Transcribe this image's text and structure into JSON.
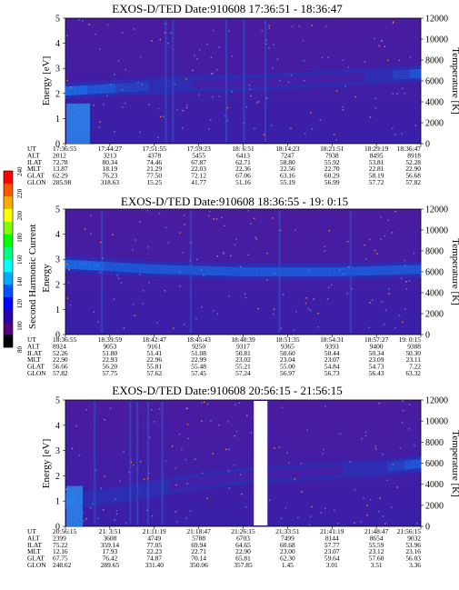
{
  "panels": [
    {
      "title": "EXOS-D/TED   Date:910608  17:36:51 - 18:36:47",
      "ylabel": "Energy [eV]",
      "y2label": "Temperature [K]",
      "yticks": [
        "0",
        "1",
        "2",
        "3",
        "4",
        "5"
      ],
      "y2ticks": [
        "0",
        "2000",
        "4000",
        "6000",
        "8000",
        "10000",
        "12000"
      ],
      "gap": false,
      "row_labels": [
        "UT",
        "ALT",
        "ILAT",
        "MLT",
        "GLAT",
        "GLON"
      ],
      "columns": [
        [
          "17:36:55",
          "2012",
          "72.78",
          "13.87",
          "62.29",
          "285.98"
        ],
        [
          "17:44:27",
          "3213",
          "80.34",
          "18.19",
          "76.23",
          "318.63"
        ],
        [
          "17:51:55",
          "4378",
          "74.46",
          "21.29",
          "77.50",
          "15.25"
        ],
        [
          "17:59:23",
          "5455",
          "67.87",
          "22.03",
          "72.12",
          "41.77"
        ],
        [
          "18: 6:51",
          "6413",
          "62.71",
          "22.36",
          "67.06",
          "51.16"
        ],
        [
          "18:14:23",
          "7247",
          "58.80",
          "22.56",
          "63.16",
          "55.19"
        ],
        [
          "18:21:51",
          "7938",
          "55.92",
          "22.70",
          "60.29",
          "56.99"
        ],
        [
          "18:29:19",
          "8495",
          "53.81",
          "22.81",
          "58.19",
          "57.72"
        ],
        [
          "18:36:47",
          "8918",
          "52.28",
          "22.90",
          "56.68",
          "57.82"
        ]
      ]
    },
    {
      "title": "EXOS-D/TED   Date:910608  18:36:55 - 19: 0:15",
      "ylabel": "Energy",
      "y2label": "Temperature [K]",
      "yticks": [
        "0",
        "1",
        "2",
        "3",
        "4",
        "5"
      ],
      "y2ticks": [
        "0",
        "2000",
        "4000",
        "6000",
        "8000",
        "10000",
        "12000"
      ],
      "gap": false,
      "row_labels": [
        "UT",
        "ALT",
        "ILAT",
        "MLT",
        "GLAT",
        "GLON"
      ],
      "columns": [
        [
          "18:36:55",
          "8924",
          "52.26",
          "22.90",
          "56.66",
          "57.82"
        ],
        [
          "18:39:59",
          "9053",
          "51.80",
          "22.93",
          "56.20",
          "57.75"
        ],
        [
          "18:42:47",
          "9161",
          "51.41",
          "22.96",
          "55.81",
          "57.62"
        ],
        [
          "18:45:43",
          "9250",
          "51.08",
          "22.99",
          "55.48",
          "57.45"
        ],
        [
          "18:48:39",
          "9317",
          "50.81",
          "23.02",
          "55.21",
          "57.24"
        ],
        [
          "18:51:35",
          "9365",
          "50.60",
          "23.04",
          "55.00",
          "56.97"
        ],
        [
          "18:54:31",
          "9393",
          "50.44",
          "23.07",
          "54.84",
          "56.73"
        ],
        [
          "18:57:27",
          "9400",
          "50.34",
          "23.09",
          "54.73",
          "56.43"
        ],
        [
          "19: 0:15",
          "9388",
          "50.30",
          "23.11",
          "7.22",
          "63.32"
        ]
      ]
    },
    {
      "title": "EXOS-D/TED   Date:910608  20:56:15 - 21:56:15",
      "ylabel": "Energy [eV]",
      "y2label": "Temperature [K]",
      "yticks": [
        "0",
        "1",
        "2",
        "3",
        "4",
        "5"
      ],
      "y2ticks": [
        "0",
        "2000",
        "4000",
        "6000",
        "8000",
        "10000",
        "12000"
      ],
      "gap": true,
      "row_labels": [
        "UT",
        "ALT",
        "ILAT",
        "MLT",
        "GLAT",
        "GLON"
      ],
      "columns": [
        [
          "20:56:15",
          "2399",
          "75.22",
          "12.16",
          "67.75",
          "248.62"
        ],
        [
          "21: 3:51",
          "3608",
          "359.14",
          "17.93",
          "76.42",
          "289.65"
        ],
        [
          "21:11:19",
          "4749",
          "77.05",
          "22.23",
          "74.87",
          "331.40"
        ],
        [
          "21:18:47",
          "5788",
          "69.94",
          "22.71",
          "70.14",
          "350.06"
        ],
        [
          "21:26:15",
          "6703",
          "64.65",
          "22.90",
          "65.81",
          "357.85"
        ],
        [
          "21:33:51",
          "7499",
          "60.68",
          "23.00",
          "62.30",
          "1.45"
        ],
        [
          "21:41:19",
          "8144",
          "57.77",
          "23.07",
          "59.64",
          "3.01"
        ],
        [
          "21:48:47",
          "8654",
          "55.59",
          "23.12",
          "57.60",
          "3.51"
        ],
        [
          "21:56:15",
          "9032",
          "53.96",
          "23.16",
          "56.03",
          "3.36"
        ]
      ]
    }
  ],
  "colorbar": {
    "label": "Second Harmonic Current",
    "ticks": [
      "80",
      "100",
      "120",
      "140",
      "160",
      "180",
      "200",
      "220",
      "240"
    ],
    "colors": [
      "#000000",
      "#55007f",
      "#2a00aa",
      "#0000ff",
      "#0055ff",
      "#00aaff",
      "#00ffff",
      "#00ff80",
      "#00ff00",
      "#80ff00",
      "#ffff00",
      "#ffaa00",
      "#ff5500",
      "#ff0000"
    ]
  },
  "chart_data": [
    {
      "type": "heatmap",
      "title": "EXOS-D/TED   Date:910608  17:36:51 - 18:36:47",
      "xlabel": "",
      "ylabel": "Energy [eV]",
      "y2label": "Temperature [K]",
      "x": [
        "17:36:55",
        "17:44:27",
        "17:51:55",
        "17:59:23",
        "18: 6:51",
        "18:14:23",
        "18:21:51",
        "18:29:19",
        "18:36:47"
      ],
      "ylim": [
        0,
        5
      ],
      "y2lim": [
        0,
        12000
      ],
      "band_energy_eV": [
        2.1,
        2.2,
        2.3,
        2.4,
        2.4,
        2.5,
        2.6,
        2.7,
        2.8
      ],
      "band_intensity": [
        160,
        140,
        125,
        115,
        112,
        110,
        112,
        120,
        150
      ]
    },
    {
      "type": "heatmap",
      "title": "EXOS-D/TED   Date:910608  18:36:55 - 19: 0:15",
      "xlabel": "",
      "ylabel": "Energy",
      "y2label": "Temperature [K]",
      "x": [
        "18:36:55",
        "18:39:59",
        "18:42:47",
        "18:45:43",
        "18:48:39",
        "18:51:35",
        "18:54:31",
        "18:57:27",
        "19: 0:15"
      ],
      "ylim": [
        0,
        5
      ],
      "y2lim": [
        0,
        12000
      ],
      "band_energy_eV": [
        2.8,
        2.7,
        2.6,
        2.55,
        2.5,
        2.5,
        2.5,
        2.55,
        2.6
      ],
      "band_intensity": [
        160,
        150,
        145,
        140,
        140,
        140,
        140,
        140,
        140
      ]
    },
    {
      "type": "heatmap",
      "title": "EXOS-D/TED   Date:910608  20:56:15 - 21:56:15",
      "xlabel": "",
      "ylabel": "Energy [eV]",
      "y2label": "Temperature [K]",
      "x": [
        "20:56:15",
        "21: 3:51",
        "21:11:19",
        "21:18:47",
        "21:26:15",
        "21:33:51",
        "21:41:19",
        "21:48:47",
        "21:56:15"
      ],
      "ylim": [
        0,
        5
      ],
      "y2lim": [
        0,
        12000
      ],
      "band_energy_eV": [
        1.0,
        1.2,
        1.5,
        1.8,
        2.0,
        2.1,
        2.2,
        2.3,
        2.5
      ],
      "band_intensity": [
        130,
        120,
        120,
        112,
        110,
        112,
        115,
        125,
        150
      ]
    }
  ]
}
